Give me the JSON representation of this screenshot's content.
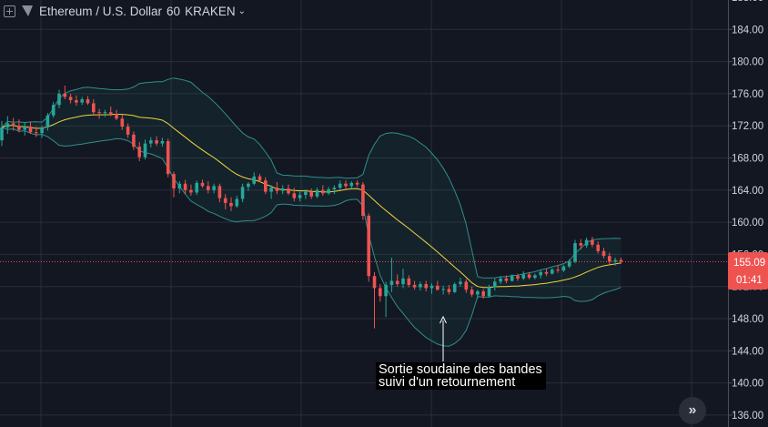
{
  "header": {
    "pair": "Ethereum / U.S. Dollar",
    "interval": "60",
    "exchange": "KRAKEN"
  },
  "price_axis": {
    "ticks": [
      "188.00",
      "184.00",
      "180.00",
      "176.00",
      "172.00",
      "168.00",
      "164.00",
      "160.00",
      "156.00",
      "152.00",
      "148.00",
      "144.00",
      "140.00",
      "136.00"
    ]
  },
  "last_price": {
    "value": "155.09",
    "countdown": "01:41",
    "color": "#ef5350"
  },
  "annotation": {
    "line1": "Sortie soudaine des bandes",
    "line2": "suivi d'un retournement"
  },
  "controls": {
    "scroll_to_realtime_icon": "double-chevron-right-icon"
  },
  "colors": {
    "background": "#131722",
    "up": "#26a69a",
    "down": "#ef5350",
    "bollinger": "#2f8f8c",
    "sma": "#f0d43c"
  },
  "chart_data": {
    "type": "candlestick",
    "symbol": "Ethereum / U.S. Dollar",
    "interval": "60",
    "exchange": "KRAKEN",
    "ylim": [
      135.4,
      188.6
    ],
    "grid": true,
    "indicators": [
      "Bollinger Bands",
      "Moving Average"
    ],
    "candles": [
      {
        "o": 170.2,
        "h": 172.6,
        "l": 169.5,
        "c": 171.8
      },
      {
        "o": 171.8,
        "h": 173.2,
        "l": 171.0,
        "c": 172.3
      },
      {
        "o": 172.3,
        "h": 173.0,
        "l": 171.4,
        "c": 172.0
      },
      {
        "o": 172.0,
        "h": 172.8,
        "l": 171.2,
        "c": 171.5
      },
      {
        "o": 171.5,
        "h": 172.4,
        "l": 170.8,
        "c": 171.9
      },
      {
        "o": 171.9,
        "h": 172.5,
        "l": 171.0,
        "c": 171.2
      },
      {
        "o": 171.2,
        "h": 171.9,
        "l": 170.6,
        "c": 171.1
      },
      {
        "o": 171.1,
        "h": 172.0,
        "l": 170.5,
        "c": 171.8
      },
      {
        "o": 171.8,
        "h": 173.6,
        "l": 171.4,
        "c": 173.3
      },
      {
        "o": 173.3,
        "h": 175.0,
        "l": 173.0,
        "c": 174.6
      },
      {
        "o": 174.6,
        "h": 176.5,
        "l": 174.2,
        "c": 176.0
      },
      {
        "o": 176.0,
        "h": 177.0,
        "l": 175.3,
        "c": 175.6
      },
      {
        "o": 175.6,
        "h": 176.0,
        "l": 174.8,
        "c": 175.2
      },
      {
        "o": 175.2,
        "h": 175.8,
        "l": 174.5,
        "c": 174.9
      },
      {
        "o": 174.9,
        "h": 175.6,
        "l": 174.6,
        "c": 175.3
      },
      {
        "o": 175.3,
        "h": 175.7,
        "l": 174.6,
        "c": 174.8
      },
      {
        "o": 174.8,
        "h": 175.3,
        "l": 173.3,
        "c": 173.7
      },
      {
        "o": 173.7,
        "h": 174.1,
        "l": 172.9,
        "c": 173.6
      },
      {
        "o": 173.6,
        "h": 174.0,
        "l": 173.1,
        "c": 173.7
      },
      {
        "o": 173.7,
        "h": 174.4,
        "l": 173.2,
        "c": 173.5
      },
      {
        "o": 173.5,
        "h": 174.0,
        "l": 172.7,
        "c": 172.9
      },
      {
        "o": 172.9,
        "h": 173.4,
        "l": 171.5,
        "c": 171.9
      },
      {
        "o": 171.9,
        "h": 172.3,
        "l": 170.5,
        "c": 170.9
      },
      {
        "o": 170.9,
        "h": 171.3,
        "l": 169.0,
        "c": 169.4
      },
      {
        "o": 169.4,
        "h": 170.0,
        "l": 167.6,
        "c": 168.1
      },
      {
        "o": 168.1,
        "h": 170.3,
        "l": 167.8,
        "c": 169.8
      },
      {
        "o": 169.8,
        "h": 170.6,
        "l": 169.3,
        "c": 170.2
      },
      {
        "o": 170.2,
        "h": 170.7,
        "l": 169.5,
        "c": 169.8
      },
      {
        "o": 169.8,
        "h": 170.5,
        "l": 169.4,
        "c": 170.1
      },
      {
        "o": 170.1,
        "h": 170.4,
        "l": 165.6,
        "c": 166.0
      },
      {
        "o": 166.0,
        "h": 166.3,
        "l": 163.1,
        "c": 164.2
      },
      {
        "o": 164.2,
        "h": 165.1,
        "l": 163.6,
        "c": 164.8
      },
      {
        "o": 164.8,
        "h": 165.3,
        "l": 163.5,
        "c": 164.0
      },
      {
        "o": 164.0,
        "h": 164.7,
        "l": 163.3,
        "c": 163.7
      },
      {
        "o": 163.7,
        "h": 165.2,
        "l": 163.4,
        "c": 164.9
      },
      {
        "o": 164.9,
        "h": 165.3,
        "l": 164.3,
        "c": 164.5
      },
      {
        "o": 164.5,
        "h": 165.1,
        "l": 163.6,
        "c": 164.0
      },
      {
        "o": 164.0,
        "h": 164.8,
        "l": 163.6,
        "c": 164.5
      },
      {
        "o": 164.5,
        "h": 164.8,
        "l": 162.5,
        "c": 163.0
      },
      {
        "o": 163.0,
        "h": 163.5,
        "l": 161.6,
        "c": 162.4
      },
      {
        "o": 162.4,
        "h": 163.1,
        "l": 161.4,
        "c": 162.0
      },
      {
        "o": 162.0,
        "h": 163.3,
        "l": 161.8,
        "c": 162.9
      },
      {
        "o": 162.9,
        "h": 164.8,
        "l": 162.5,
        "c": 164.4
      },
      {
        "o": 164.4,
        "h": 165.0,
        "l": 163.9,
        "c": 164.8
      },
      {
        "o": 164.8,
        "h": 166.2,
        "l": 164.6,
        "c": 165.7
      },
      {
        "o": 165.7,
        "h": 166.0,
        "l": 165.0,
        "c": 165.2
      },
      {
        "o": 165.2,
        "h": 165.6,
        "l": 163.5,
        "c": 163.8
      },
      {
        "o": 163.8,
        "h": 164.6,
        "l": 162.9,
        "c": 164.3
      },
      {
        "o": 164.3,
        "h": 165.0,
        "l": 163.5,
        "c": 163.9
      },
      {
        "o": 163.9,
        "h": 164.6,
        "l": 163.5,
        "c": 164.2
      },
      {
        "o": 164.2,
        "h": 164.7,
        "l": 163.4,
        "c": 163.6
      },
      {
        "o": 163.6,
        "h": 164.3,
        "l": 162.6,
        "c": 163.0
      },
      {
        "o": 163.0,
        "h": 163.8,
        "l": 162.6,
        "c": 163.4
      },
      {
        "o": 163.4,
        "h": 164.1,
        "l": 162.9,
        "c": 163.8
      },
      {
        "o": 163.8,
        "h": 164.2,
        "l": 162.9,
        "c": 163.2
      },
      {
        "o": 163.2,
        "h": 164.3,
        "l": 163.0,
        "c": 164.0
      },
      {
        "o": 164.0,
        "h": 164.6,
        "l": 163.3,
        "c": 163.6
      },
      {
        "o": 163.6,
        "h": 164.4,
        "l": 163.4,
        "c": 164.1
      },
      {
        "o": 164.1,
        "h": 164.6,
        "l": 163.5,
        "c": 164.3
      },
      {
        "o": 164.3,
        "h": 165.2,
        "l": 164.0,
        "c": 164.8
      },
      {
        "o": 164.8,
        "h": 165.2,
        "l": 164.1,
        "c": 164.5
      },
      {
        "o": 164.5,
        "h": 165.1,
        "l": 164.2,
        "c": 164.9
      },
      {
        "o": 164.9,
        "h": 165.2,
        "l": 164.4,
        "c": 164.7
      },
      {
        "o": 164.7,
        "h": 165.0,
        "l": 160.3,
        "c": 160.8
      },
      {
        "o": 160.8,
        "h": 161.1,
        "l": 152.6,
        "c": 153.3
      },
      {
        "o": 153.3,
        "h": 153.8,
        "l": 146.8,
        "c": 151.8
      },
      {
        "o": 151.8,
        "h": 152.3,
        "l": 150.1,
        "c": 150.8
      },
      {
        "o": 150.8,
        "h": 152.6,
        "l": 148.2,
        "c": 152.2
      },
      {
        "o": 152.2,
        "h": 155.6,
        "l": 151.3,
        "c": 152.7
      },
      {
        "o": 152.7,
        "h": 153.5,
        "l": 152.0,
        "c": 152.3
      },
      {
        "o": 152.3,
        "h": 154.2,
        "l": 151.8,
        "c": 153.0
      },
      {
        "o": 153.0,
        "h": 153.4,
        "l": 151.9,
        "c": 152.2
      },
      {
        "o": 152.2,
        "h": 152.7,
        "l": 151.6,
        "c": 151.9
      },
      {
        "o": 151.9,
        "h": 152.6,
        "l": 151.5,
        "c": 152.3
      },
      {
        "o": 152.3,
        "h": 152.7,
        "l": 151.4,
        "c": 151.8
      },
      {
        "o": 151.8,
        "h": 152.4,
        "l": 151.1,
        "c": 152.1
      },
      {
        "o": 152.1,
        "h": 152.7,
        "l": 151.5,
        "c": 151.6
      },
      {
        "o": 151.6,
        "h": 152.1,
        "l": 151.0,
        "c": 151.7
      },
      {
        "o": 151.7,
        "h": 152.2,
        "l": 151.0,
        "c": 151.3
      },
      {
        "o": 151.3,
        "h": 152.5,
        "l": 151.2,
        "c": 152.3
      },
      {
        "o": 152.3,
        "h": 153.1,
        "l": 152.0,
        "c": 152.6
      },
      {
        "o": 152.6,
        "h": 152.9,
        "l": 151.2,
        "c": 151.6
      },
      {
        "o": 151.6,
        "h": 152.0,
        "l": 150.7,
        "c": 151.0
      },
      {
        "o": 151.0,
        "h": 151.6,
        "l": 150.5,
        "c": 151.4
      },
      {
        "o": 151.4,
        "h": 151.7,
        "l": 150.5,
        "c": 150.8
      },
      {
        "o": 150.8,
        "h": 152.2,
        "l": 150.6,
        "c": 151.9
      },
      {
        "o": 151.9,
        "h": 153.0,
        "l": 151.5,
        "c": 152.6
      },
      {
        "o": 152.6,
        "h": 153.3,
        "l": 152.3,
        "c": 153.0
      },
      {
        "o": 153.0,
        "h": 153.4,
        "l": 152.4,
        "c": 152.7
      },
      {
        "o": 152.7,
        "h": 153.5,
        "l": 152.6,
        "c": 153.3
      },
      {
        "o": 153.3,
        "h": 153.6,
        "l": 152.7,
        "c": 153.0
      },
      {
        "o": 153.0,
        "h": 153.9,
        "l": 152.8,
        "c": 153.5
      },
      {
        "o": 153.5,
        "h": 153.8,
        "l": 152.9,
        "c": 153.1
      },
      {
        "o": 153.1,
        "h": 153.6,
        "l": 152.9,
        "c": 153.4
      },
      {
        "o": 153.4,
        "h": 154.0,
        "l": 153.0,
        "c": 153.8
      },
      {
        "o": 153.8,
        "h": 154.2,
        "l": 153.3,
        "c": 153.6
      },
      {
        "o": 153.6,
        "h": 154.3,
        "l": 153.5,
        "c": 154.1
      },
      {
        "o": 154.1,
        "h": 154.6,
        "l": 153.7,
        "c": 154.0
      },
      {
        "o": 154.0,
        "h": 154.7,
        "l": 153.8,
        "c": 154.5
      },
      {
        "o": 154.5,
        "h": 155.4,
        "l": 154.3,
        "c": 155.1
      },
      {
        "o": 155.1,
        "h": 157.8,
        "l": 154.9,
        "c": 157.4
      },
      {
        "o": 157.4,
        "h": 157.9,
        "l": 156.6,
        "c": 157.1
      },
      {
        "o": 157.1,
        "h": 158.1,
        "l": 156.8,
        "c": 157.8
      },
      {
        "o": 157.8,
        "h": 158.2,
        "l": 156.9,
        "c": 157.2
      },
      {
        "o": 157.2,
        "h": 157.6,
        "l": 156.1,
        "c": 156.4
      },
      {
        "o": 156.4,
        "h": 156.8,
        "l": 155.5,
        "c": 155.8
      },
      {
        "o": 155.8,
        "h": 156.2,
        "l": 154.7,
        "c": 155.1
      },
      {
        "o": 155.1,
        "h": 155.6,
        "l": 154.6,
        "c": 155.3
      },
      {
        "o": 155.3,
        "h": 155.6,
        "l": 154.8,
        "c": 155.09
      }
    ]
  }
}
